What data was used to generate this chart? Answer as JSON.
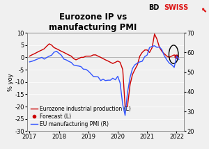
{
  "title": "Eurozone IP vs\nmanufacturing PMI",
  "ylabel_left": "% yoy",
  "ylim_left": [
    -30,
    10
  ],
  "ylim_right": [
    20,
    70
  ],
  "yticks_left": [
    -30,
    -25,
    -20,
    -15,
    -10,
    -5,
    0,
    5,
    10
  ],
  "yticks_right": [
    20,
    30,
    40,
    50,
    60,
    70
  ],
  "xlim": [
    2016.92,
    2022.25
  ],
  "xticks": [
    2017,
    2018,
    2019,
    2020,
    2021,
    2022
  ],
  "ip_x": [
    2017.0,
    2017.08,
    2017.17,
    2017.25,
    2017.33,
    2017.42,
    2017.5,
    2017.58,
    2017.67,
    2017.75,
    2017.83,
    2017.92,
    2018.0,
    2018.08,
    2018.17,
    2018.25,
    2018.33,
    2018.42,
    2018.5,
    2018.58,
    2018.67,
    2018.75,
    2018.83,
    2018.92,
    2019.0,
    2019.08,
    2019.17,
    2019.25,
    2019.33,
    2019.42,
    2019.5,
    2019.58,
    2019.67,
    2019.75,
    2019.83,
    2019.92,
    2020.0,
    2020.08,
    2020.17,
    2020.25,
    2020.33,
    2020.42,
    2020.5,
    2020.58,
    2020.67,
    2020.75,
    2020.83,
    2020.92,
    2021.0,
    2021.08,
    2021.17,
    2021.25,
    2021.33,
    2021.42,
    2021.5,
    2021.58,
    2021.67,
    2021.75,
    2021.83,
    2021.92,
    2022.0
  ],
  "ip_y": [
    0.5,
    1.0,
    1.5,
    2.0,
    2.5,
    3.0,
    3.5,
    4.5,
    5.5,
    5.0,
    4.0,
    3.5,
    3.0,
    2.5,
    2.0,
    1.5,
    1.0,
    0.5,
    -0.5,
    -1.0,
    -0.5,
    0.0,
    0.0,
    0.5,
    0.5,
    0.5,
    1.0,
    1.0,
    0.5,
    0.0,
    -0.5,
    -1.0,
    -1.5,
    -2.0,
    -2.5,
    -2.0,
    -1.5,
    -2.0,
    -5.0,
    -20.0,
    -20.0,
    -11.0,
    -7.0,
    -5.0,
    -3.0,
    0.5,
    2.0,
    3.0,
    3.0,
    2.0,
    4.0,
    9.5,
    7.5,
    4.0,
    2.5,
    1.5,
    0.5,
    0.0,
    0.5,
    1.0,
    0.5
  ],
  "forecast_x": [
    2022.0
  ],
  "forecast_y": [
    0.5
  ],
  "pmi_x": [
    2017.0,
    2017.08,
    2017.17,
    2017.25,
    2017.33,
    2017.42,
    2017.5,
    2017.58,
    2017.67,
    2017.75,
    2017.83,
    2017.92,
    2018.0,
    2018.08,
    2018.17,
    2018.25,
    2018.33,
    2018.42,
    2018.5,
    2018.58,
    2018.67,
    2018.75,
    2018.83,
    2018.92,
    2019.0,
    2019.08,
    2019.17,
    2019.25,
    2019.33,
    2019.42,
    2019.5,
    2019.58,
    2019.67,
    2019.75,
    2019.83,
    2019.92,
    2020.0,
    2020.08,
    2020.17,
    2020.25,
    2020.33,
    2020.42,
    2020.5,
    2020.58,
    2020.67,
    2020.75,
    2020.83,
    2020.92,
    2021.0,
    2021.08,
    2021.17,
    2021.25,
    2021.33,
    2021.42,
    2021.5,
    2021.58,
    2021.67,
    2021.75,
    2021.83,
    2021.92,
    2022.0,
    2022.08
  ],
  "pmi_y": [
    55.2,
    55.5,
    56.0,
    56.5,
    57.0,
    57.5,
    56.6,
    57.4,
    58.1,
    58.6,
    60.1,
    60.6,
    59.6,
    58.6,
    56.6,
    56.2,
    55.5,
    54.9,
    53.6,
    53.3,
    53.1,
    52.8,
    51.5,
    51.4,
    50.5,
    49.3,
    47.8,
    47.7,
    47.6,
    45.7,
    46.4,
    45.7,
    45.9,
    45.9,
    46.9,
    46.1,
    47.9,
    44.5,
    33.4,
    28.0,
    39.4,
    47.4,
    51.8,
    53.7,
    54.6,
    55.2,
    55.5,
    57.9,
    58.7,
    62.5,
    63.1,
    63.4,
    62.6,
    62.8,
    61.4,
    58.4,
    56.2,
    54.6,
    53.8,
    52.4,
    58.2,
    56.5
  ],
  "ip_color": "#cc0000",
  "pmi_color": "#3355ff",
  "forecast_color": "#cc0000",
  "bg_color": "#f0f0f0",
  "title_fontsize": 8.5,
  "tick_fontsize": 6,
  "legend_fontsize": 5.5
}
